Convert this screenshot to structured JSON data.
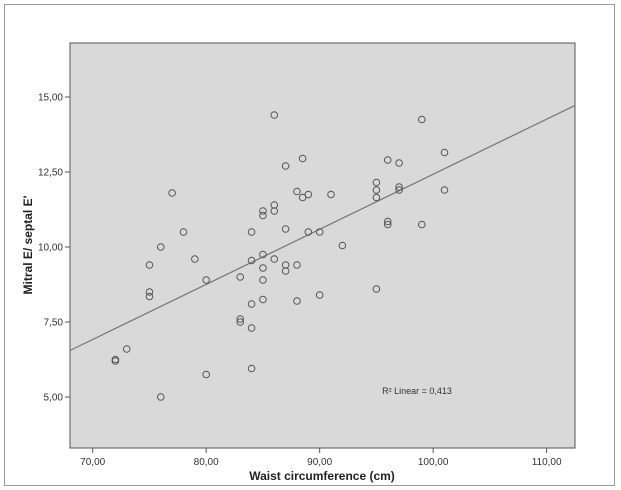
{
  "chart_data": {
    "type": "scatter",
    "title": "",
    "xlabel": "Waist circumference (cm)",
    "ylabel": "Mitral E/ septal E'",
    "xlim": [
      68,
      112.5
    ],
    "ylim": [
      3.3,
      16.8
    ],
    "x_ticks": [
      {
        "value": 70,
        "label": "70,00"
      },
      {
        "value": 80,
        "label": "80,00"
      },
      {
        "value": 90,
        "label": "90,00"
      },
      {
        "value": 100,
        "label": "100,00"
      },
      {
        "value": 110,
        "label": "110,00"
      }
    ],
    "y_ticks": [
      {
        "value": 5,
        "label": "5,00"
      },
      {
        "value": 7.5,
        "label": "7,50"
      },
      {
        "value": 10,
        "label": "10,00"
      },
      {
        "value": 12.5,
        "label": "12,50"
      },
      {
        "value": 15,
        "label": "15,00"
      }
    ],
    "grid": false,
    "background": "#d9d9d9",
    "marker_color": "#555555",
    "line_color": "#777777",
    "fit_line": {
      "type": "linear",
      "x": [
        68,
        112.5
      ],
      "y": [
        6.55,
        14.72
      ]
    },
    "annotation": {
      "label": "R² Linear = 0,413",
      "x": 95.5,
      "y": 5.1
    },
    "points": [
      {
        "x": 72,
        "y": 6.2
      },
      {
        "x": 72,
        "y": 6.25
      },
      {
        "x": 73,
        "y": 6.6
      },
      {
        "x": 75,
        "y": 8.5
      },
      {
        "x": 75,
        "y": 8.35
      },
      {
        "x": 75,
        "y": 9.4
      },
      {
        "x": 76,
        "y": 10.0
      },
      {
        "x": 76,
        "y": 5.0
      },
      {
        "x": 77,
        "y": 11.8
      },
      {
        "x": 78,
        "y": 10.5
      },
      {
        "x": 79,
        "y": 9.6
      },
      {
        "x": 80,
        "y": 8.9
      },
      {
        "x": 80,
        "y": 5.75
      },
      {
        "x": 83,
        "y": 9.0
      },
      {
        "x": 83,
        "y": 7.6
      },
      {
        "x": 83,
        "y": 7.5
      },
      {
        "x": 84,
        "y": 10.5
      },
      {
        "x": 84,
        "y": 9.55
      },
      {
        "x": 84,
        "y": 8.1
      },
      {
        "x": 84,
        "y": 7.3
      },
      {
        "x": 84,
        "y": 5.95
      },
      {
        "x": 85,
        "y": 11.2
      },
      {
        "x": 85,
        "y": 11.05
      },
      {
        "x": 85,
        "y": 9.75
      },
      {
        "x": 85,
        "y": 9.3
      },
      {
        "x": 85,
        "y": 8.9
      },
      {
        "x": 85,
        "y": 8.25
      },
      {
        "x": 86,
        "y": 14.4
      },
      {
        "x": 86,
        "y": 11.4
      },
      {
        "x": 86,
        "y": 11.2
      },
      {
        "x": 86,
        "y": 9.6
      },
      {
        "x": 87,
        "y": 12.7
      },
      {
        "x": 87,
        "y": 10.6
      },
      {
        "x": 87,
        "y": 9.4
      },
      {
        "x": 87,
        "y": 9.2
      },
      {
        "x": 88,
        "y": 11.85
      },
      {
        "x": 88,
        "y": 9.4
      },
      {
        "x": 88,
        "y": 8.2
      },
      {
        "x": 88.5,
        "y": 12.95
      },
      {
        "x": 88.5,
        "y": 11.65
      },
      {
        "x": 89,
        "y": 11.75
      },
      {
        "x": 89,
        "y": 10.5
      },
      {
        "x": 90,
        "y": 10.5
      },
      {
        "x": 90,
        "y": 8.4
      },
      {
        "x": 91,
        "y": 11.75
      },
      {
        "x": 92,
        "y": 10.05
      },
      {
        "x": 95,
        "y": 12.15
      },
      {
        "x": 95,
        "y": 11.9
      },
      {
        "x": 95,
        "y": 11.65
      },
      {
        "x": 95,
        "y": 8.6
      },
      {
        "x": 96,
        "y": 12.9
      },
      {
        "x": 96,
        "y": 10.85
      },
      {
        "x": 96,
        "y": 10.75
      },
      {
        "x": 97,
        "y": 12.8
      },
      {
        "x": 97,
        "y": 12.0
      },
      {
        "x": 97,
        "y": 11.9
      },
      {
        "x": 99,
        "y": 14.25
      },
      {
        "x": 99,
        "y": 10.75
      },
      {
        "x": 101,
        "y": 13.15
      },
      {
        "x": 101,
        "y": 11.9
      }
    ]
  }
}
